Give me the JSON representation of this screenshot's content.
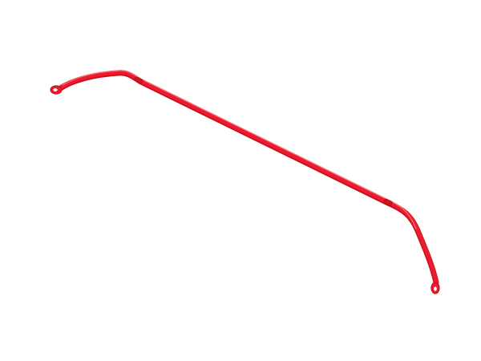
{
  "image": {
    "subject": "sway-bar",
    "colors": {
      "background": "#ffffff",
      "bar_main": "#ec1b2e",
      "bar_shadow": "#c9101f",
      "bar_highlight": "#ff6f7a",
      "bushing": "#d5151f"
    }
  }
}
